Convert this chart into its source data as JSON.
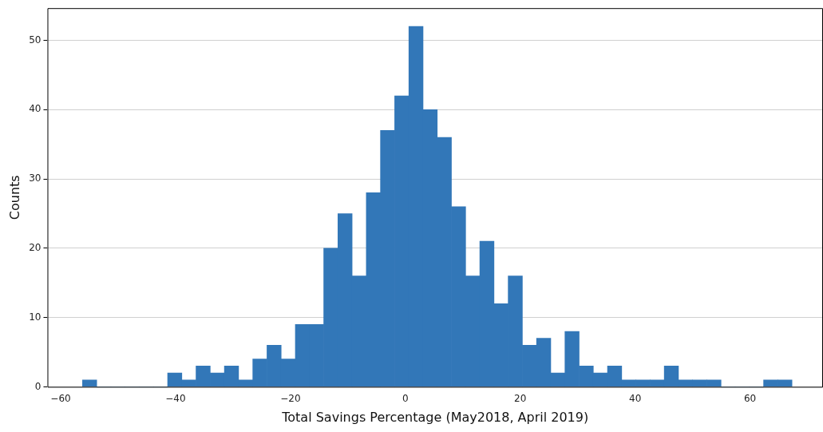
{
  "chart_data": {
    "type": "histogram",
    "xlabel": "Total Savings Percentage (May2018, April 2019)",
    "ylabel": "Counts",
    "bins": [
      -56.2,
      -53.73,
      -51.26,
      -48.79,
      -46.32,
      -43.85,
      -41.38,
      -38.91,
      -36.44,
      -33.97,
      -31.5,
      -29.03,
      -26.56,
      -24.09,
      -21.62,
      -19.15,
      -16.68,
      -14.21,
      -11.74,
      -9.27,
      -6.8,
      -4.33,
      -1.86,
      0.61,
      3.08,
      5.55,
      8.02,
      10.49,
      12.96,
      15.43,
      17.9,
      20.37,
      22.84,
      25.31,
      27.78,
      30.25,
      32.72,
      35.19,
      37.66,
      40.13,
      42.6,
      45.07,
      47.54,
      50.01,
      52.48,
      54.95,
      57.42,
      59.89,
      62.36,
      64.83,
      67.3
    ],
    "values": [
      1,
      0,
      0,
      0,
      0,
      0,
      2,
      1,
      3,
      2,
      3,
      1,
      4,
      6,
      4,
      9,
      9,
      20,
      25,
      16,
      28,
      37,
      42,
      52,
      40,
      36,
      26,
      16,
      21,
      12,
      16,
      6,
      7,
      2,
      8,
      3,
      2,
      3,
      1,
      1,
      1,
      3,
      1,
      1,
      1,
      0,
      0,
      0,
      1,
      1
    ],
    "color": "#3277b8",
    "xlim": [
      -62.3,
      72.7
    ],
    "xticks": [
      {
        "value": -60,
        "label": "−60"
      },
      {
        "value": -40,
        "label": "−40"
      },
      {
        "value": -20,
        "label": "−20"
      },
      0,
      20,
      40,
      60
    ],
    "ylim": [
      0,
      54.65
    ],
    "yticks": [
      0,
      10,
      20,
      30,
      40,
      50
    ],
    "grid": "y"
  }
}
